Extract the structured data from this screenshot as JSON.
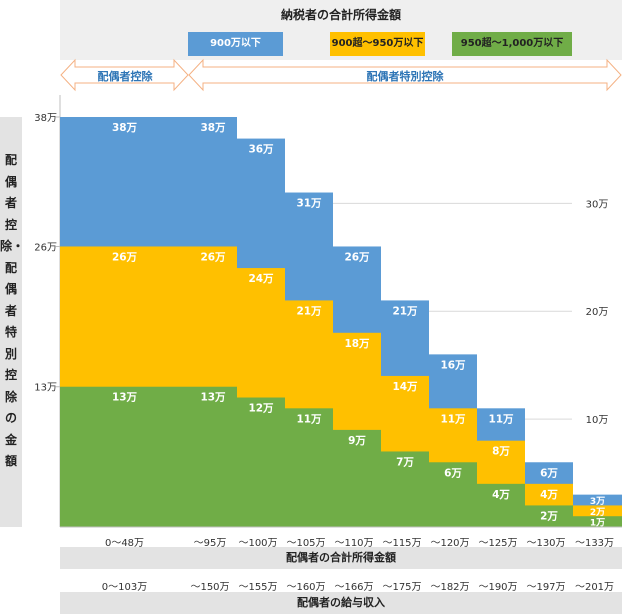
{
  "header": {
    "title": "納税者の合計所得金額",
    "legend": [
      {
        "label": "900万以下",
        "color": "#5b9bd5",
        "text_color": "#ffffff"
      },
      {
        "label": "900超～950万以下",
        "color": "#ffc000",
        "text_color": "#222222"
      },
      {
        "label": "950超～1,000万以下",
        "color": "#70ad47",
        "text_color": "#222222"
      }
    ]
  },
  "ranges": {
    "spouse_deduction": "配偶者控除",
    "special_deduction": "配偶者特別控除"
  },
  "y_axis_title": "配偶者控除・配偶者特別控除の金額",
  "x_axis_title_1": "配偶者の合計所得金額",
  "x_axis_title_2": "配偶者の給与収入",
  "chart_data": {
    "type": "bar",
    "categories": [
      "0～48万",
      "～95万",
      "～100万",
      "～105万",
      "～110万",
      "～115万",
      "～120万",
      "～125万",
      "～130万",
      "～133万"
    ],
    "salary_categories": [
      "0～103万",
      "～150万",
      "～155万",
      "～160万",
      "～166万",
      "～175万",
      "～182万",
      "～190万",
      "～197万",
      "～201万"
    ],
    "series": [
      {
        "name": "900万以下",
        "color": "#5b9bd5",
        "values": [
          38,
          38,
          36,
          31,
          26,
          21,
          16,
          11,
          6,
          3
        ],
        "labels": [
          "38万",
          "38万",
          "36万",
          "31万",
          "26万",
          "21万",
          "16万",
          "11万",
          "6万",
          "3万"
        ]
      },
      {
        "name": "900超～950万以下",
        "color": "#ffc000",
        "values": [
          26,
          26,
          24,
          21,
          18,
          14,
          11,
          8,
          4,
          2
        ],
        "labels": [
          "26万",
          "26万",
          "24万",
          "21万",
          "18万",
          "14万",
          "11万",
          "8万",
          "4万",
          "2万"
        ]
      },
      {
        "name": "950超～1,000万以下",
        "color": "#70ad47",
        "values": [
          13,
          13,
          12,
          11,
          9,
          7,
          6,
          4,
          2,
          1
        ],
        "labels": [
          "13万",
          "13万",
          "12万",
          "11万",
          "9万",
          "7万",
          "6万",
          "4万",
          "2万",
          "1万"
        ]
      }
    ],
    "left_ticks": [
      {
        "value": 38,
        "label": "38万"
      },
      {
        "value": 26,
        "label": "26万"
      },
      {
        "value": 13,
        "label": "13万"
      }
    ],
    "right_ticks": [
      {
        "value": 30,
        "label": "30万"
      },
      {
        "value": 20,
        "label": "20万"
      },
      {
        "value": 10,
        "label": "10万"
      }
    ],
    "ylim": [
      0,
      38
    ]
  }
}
